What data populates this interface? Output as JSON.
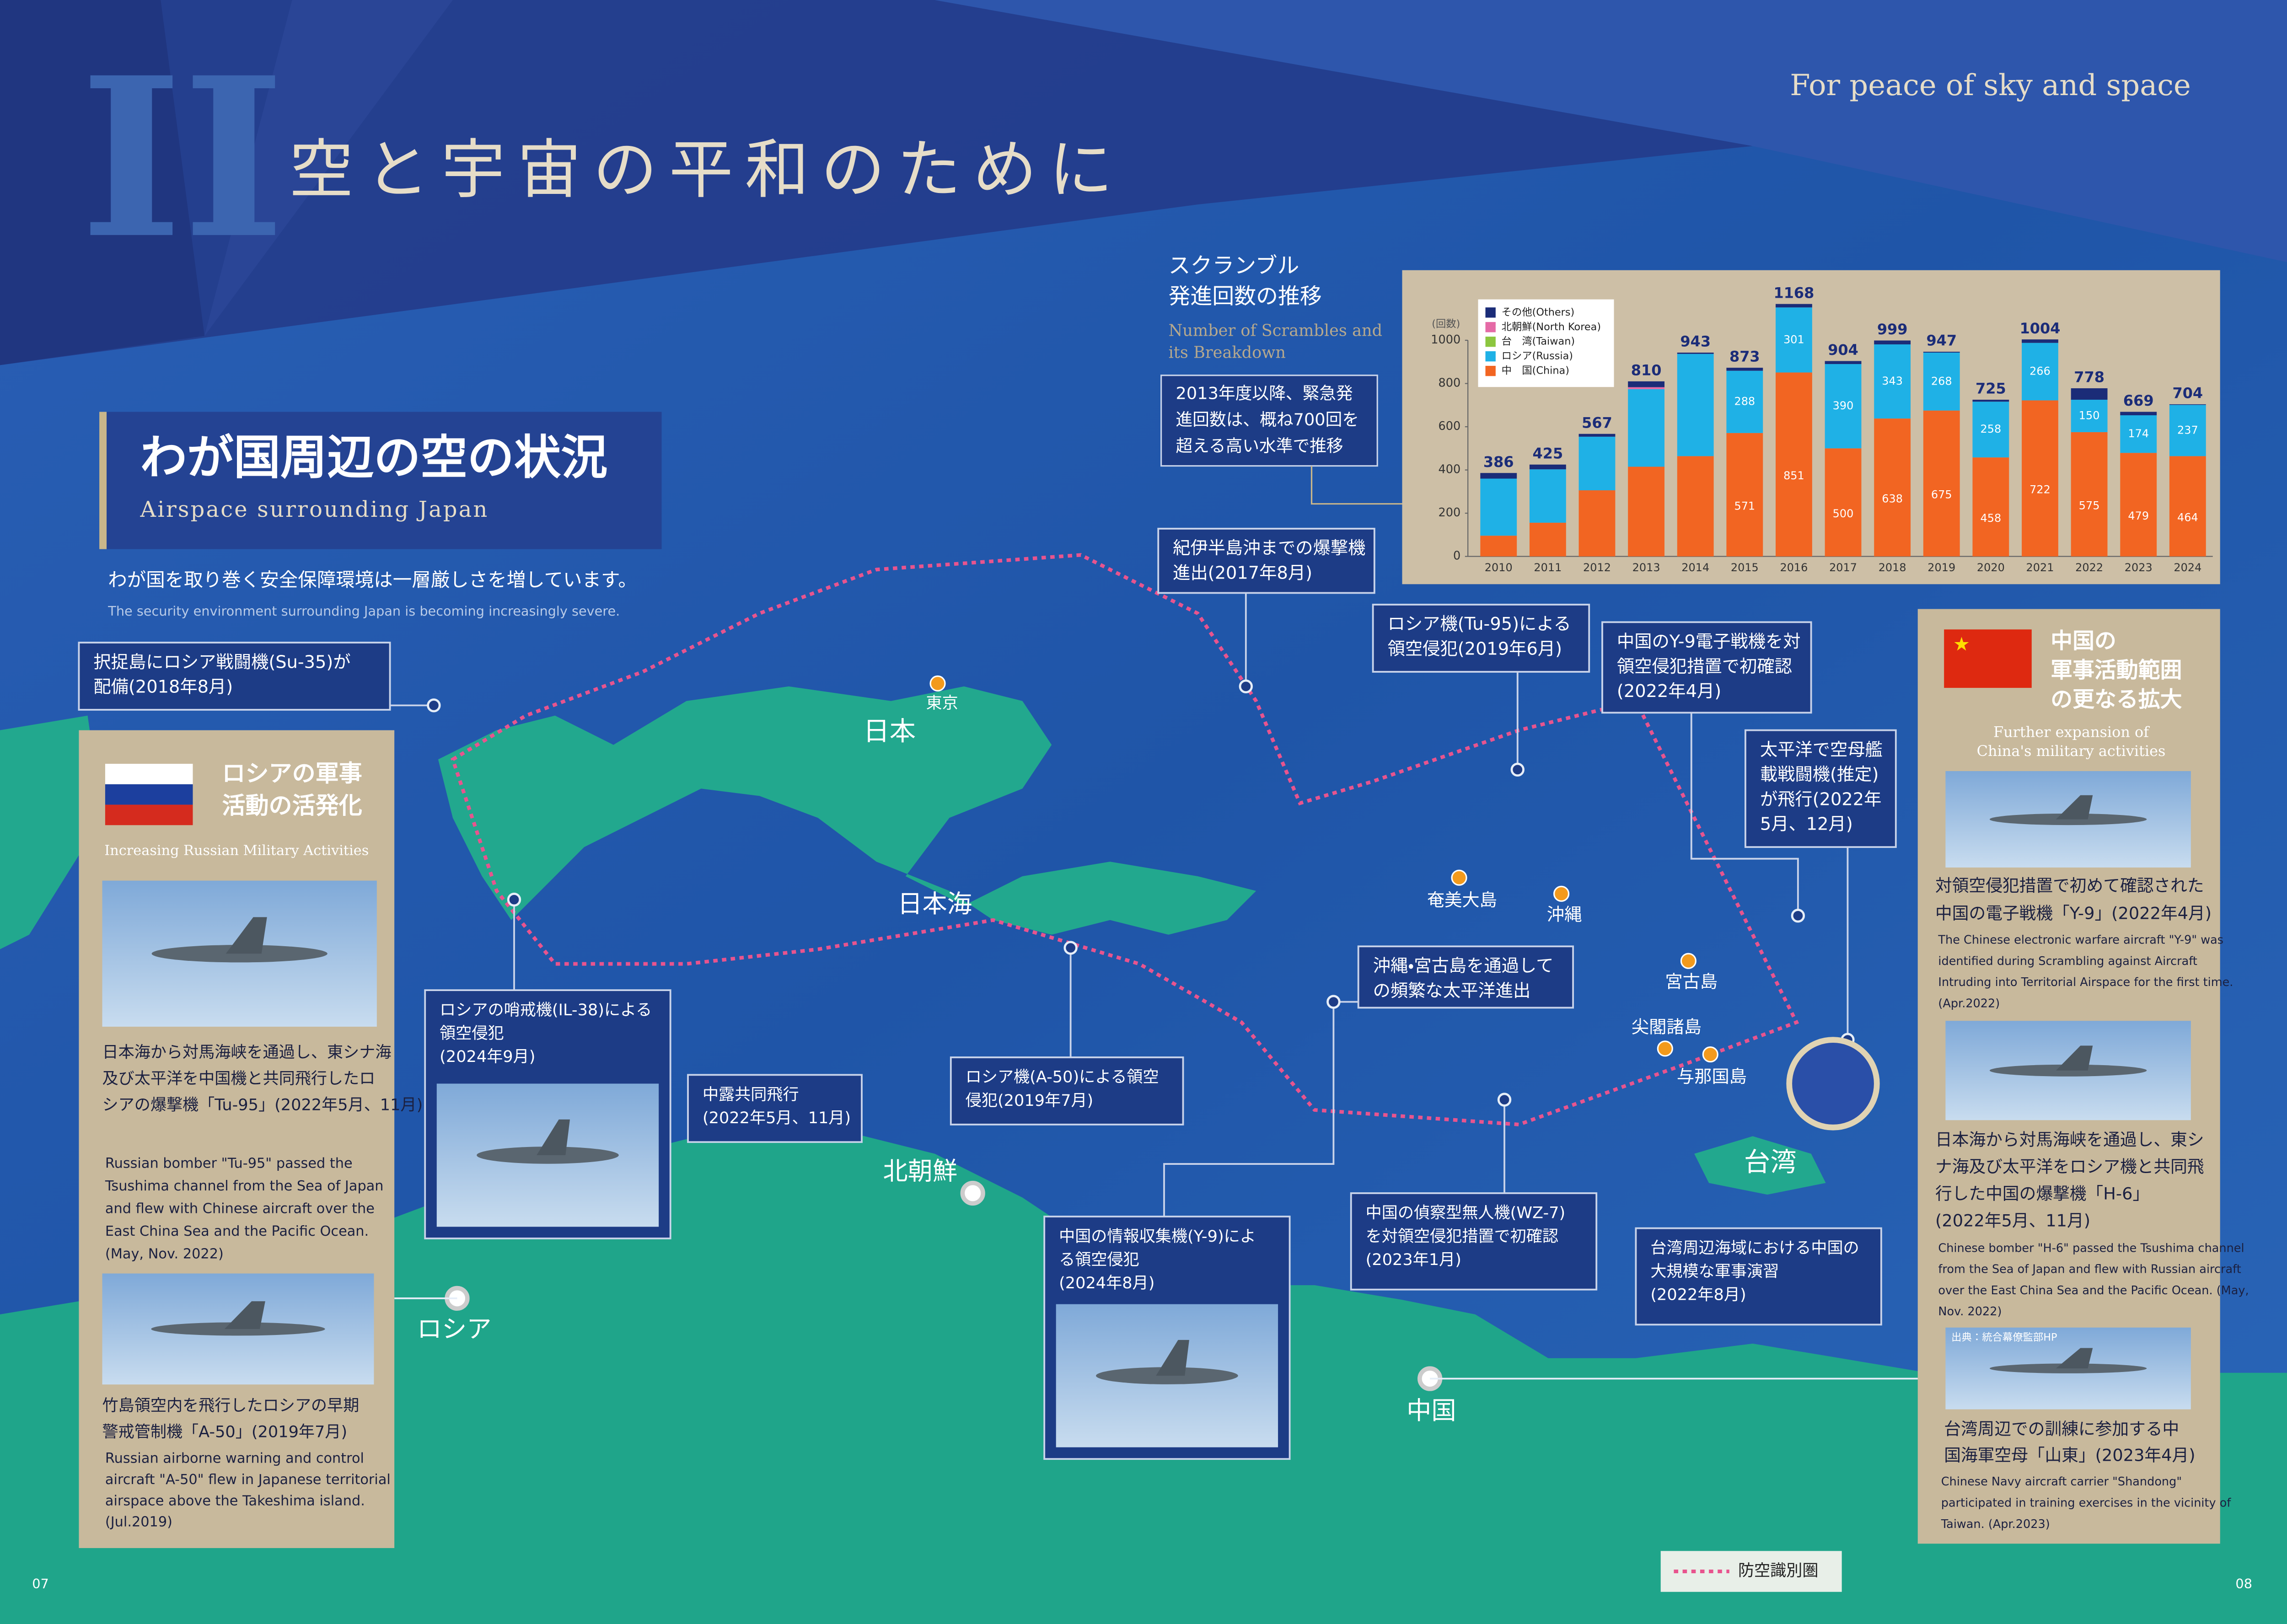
{
  "header": {
    "numeral": "II",
    "title": "空と宇宙の平和のために",
    "tagline": "For peace of sky and space"
  },
  "section": {
    "title": "わが国周辺の空の状況",
    "subtitle": "Airspace surrounding Japan",
    "lead": "わが国を取り巻く安全保障環境は一層厳しさを増しています。",
    "lead_en": "The security environment surrounding Japan is becoming increasingly severe."
  },
  "chart_data": {
    "type": "bar",
    "stacked": true,
    "title": [
      "スクランブル",
      "発進回数の推移"
    ],
    "subtitle": [
      "Number of Scrambles and",
      "its Breakdown"
    ],
    "y_unit": "(回数)",
    "note": [
      "2013年度以降、緊急発",
      "進回数は、概ね700回を",
      "超える高い水準で推移"
    ],
    "categories": [
      "2010",
      "2011",
      "2012",
      "2013",
      "2014",
      "2015",
      "2016",
      "2017",
      "2018",
      "2019",
      "2020",
      "2021",
      "2022",
      "2023",
      "2024"
    ],
    "series": [
      {
        "name": "中　国(China)",
        "color": "#f26522",
        "values": [
          96,
          156,
          306,
          415,
          464,
          571,
          851,
          500,
          638,
          675,
          458,
          722,
          575,
          479,
          464
        ],
        "value_labels": [
          null,
          null,
          null,
          null,
          null,
          "571",
          "851",
          "500",
          "638",
          "675",
          "458",
          "722",
          "575",
          "479",
          "464"
        ]
      },
      {
        "name": "ロシア(Russia)",
        "color": "#1fb1e6",
        "values": [
          264,
          247,
          248,
          359,
          473,
          288,
          301,
          390,
          343,
          268,
          258,
          266,
          150,
          174,
          237
        ],
        "value_labels": [
          null,
          null,
          null,
          null,
          null,
          "288",
          "301",
          "390",
          "343",
          "268",
          "258",
          "266",
          "150",
          "174",
          "237"
        ]
      },
      {
        "name": "台　湾(Taiwan)",
        "color": "#8cc63f",
        "values": [
          0,
          0,
          0,
          0,
          0,
          0,
          0,
          0,
          0,
          0,
          0,
          0,
          0,
          0,
          0
        ]
      },
      {
        "name": "北朝鮮(North Korea)",
        "color": "#e56aa6",
        "values": [
          0,
          0,
          0,
          9,
          0,
          0,
          0,
          0,
          0,
          0,
          0,
          0,
          0,
          0,
          0
        ]
      },
      {
        "name": "その他(Others)",
        "color": "#1b2c78",
        "values": [
          26,
          22,
          13,
          27,
          6,
          14,
          16,
          14,
          18,
          4,
          9,
          16,
          53,
          16,
          3
        ]
      }
    ],
    "totals": [
      386,
      425,
      567,
      810,
      943,
      873,
      1168,
      904,
      999,
      947,
      725,
      1004,
      778,
      669,
      704
    ],
    "ylim": [
      0,
      1250
    ],
    "yticks": [
      0,
      200,
      400,
      600,
      800,
      1000
    ],
    "grid": false
  },
  "callouts": [
    {
      "lines": [
        "択捉島にロシア戦闘機(Su-35)が",
        "配備(2018年8月)"
      ]
    },
    {
      "lines": [
        "紀伊半島沖までの爆撃機",
        "進出(2017年8月)"
      ]
    },
    {
      "lines": [
        "ロシア機(Tu-95)による",
        "領空侵犯(2019年6月)"
      ]
    },
    {
      "lines": [
        "中国のY-9電子戦機を対",
        "領空侵犯措置で初確認",
        "(2022年4月)"
      ]
    },
    {
      "lines": [
        "太平洋で空母艦",
        "載戦闘機(推定)",
        "が飛行(2022年",
        "5月、12月)"
      ]
    },
    {
      "lines": [
        "沖縄・宮古島を通過して",
        "の頻繁な太平洋進出"
      ]
    },
    {
      "lines": [
        "ロシアの哨戒機(IL-38)による",
        "領空侵犯",
        "(2024年9月)"
      ]
    },
    {
      "lines": [
        "中露共同飛行",
        "(2022年5月、11月)"
      ]
    },
    {
      "lines": [
        "ロシア機(A-50)による領空",
        "侵犯(2019年7月)"
      ]
    },
    {
      "lines": [
        "中国の情報収集機(Y-9)によ",
        "る領空侵犯",
        "(2024年8月)"
      ]
    },
    {
      "lines": [
        "中国の偵察型無人機(WZ-7)",
        "を対領空侵犯措置で初確認",
        "(2023年1月)"
      ]
    },
    {
      "lines": [
        "台湾周辺海域における中国の",
        "大規模な軍事演習",
        "(2022年8月)"
      ]
    }
  ],
  "places": [
    "東京",
    "日本",
    "日本海",
    "奄美大島",
    "沖縄",
    "宮古島",
    "尖閣諸島",
    "与那国島",
    "台湾",
    "北朝鮮",
    "中国",
    "ロシア"
  ],
  "russia_panel": {
    "title": [
      "ロシアの軍事",
      "活動の活発化"
    ],
    "subtitle": "Increasing Russian Military Activities",
    "items": [
      {
        "jp": [
          "日本海から対馬海峡を通過し、東シナ海",
          "及び太平洋を中国機と共同飛行したロ",
          "シアの爆撃機「Tu-95」(2022年5月、11月)"
        ],
        "en": [
          "Russian bomber \"Tu-95\" passed the",
          "Tsushima channel from the Sea of Japan",
          "and flew with Chinese aircraft  over the",
          "East China Sea and the Pacific Ocean.",
          "(May, Nov. 2022)"
        ]
      },
      {
        "jp": [
          "竹島領空内を飛行したロシアの早期",
          "警戒管制機「A-50」(2019年7月)"
        ],
        "en": [
          "Russian airborne warning and control",
          "aircraft \"A-50\" flew in Japanese territorial",
          "airspace above the Takeshima island.",
          "(Jul.2019)"
        ]
      }
    ]
  },
  "china_panel": {
    "title": [
      "中国の",
      "軍事活動範囲",
      "の更なる拡大"
    ],
    "subtitle": [
      "Further expansion of",
      "China's military activities"
    ],
    "source": "出典：統合幕僚監部HP",
    "items": [
      {
        "jp": [
          "対領空侵犯措置で初めて確認された",
          "中国の電子戦機「Y-9」(2022年4月)"
        ],
        "en": [
          "The Chinese electronic warfare aircraft \"Y-9\" was",
          "identified during Scrambling against Aircraft",
          "Intruding into Territorial Airspace for the first time.",
          "(Apr.2022)"
        ]
      },
      {
        "jp": [
          "日本海から対馬海峡を通過し、東シ",
          "ナ海及び太平洋をロシア機と共同飛",
          "行した中国の爆撃機「H-6」",
          "(2022年5月、11月)"
        ],
        "en": [
          "Chinese bomber \"H-6\" passed the Tsushima channel",
          "from the Sea of Japan and flew with Russian aircraft",
          "over the East China Sea and the Pacific Ocean. (May,",
          "Nov. 2022)"
        ]
      },
      {
        "jp": [
          "台湾周辺での訓練に参加する中",
          "国海軍空母「山東」(2023年4月)"
        ],
        "en": [
          "Chinese Navy aircraft carrier \"Shandong\"",
          "participated in training exercises in the vicinity of",
          "Taiwan. (Apr.2023)"
        ]
      }
    ]
  },
  "legend": "防空識別圏",
  "pages": [
    "07",
    "08"
  ]
}
